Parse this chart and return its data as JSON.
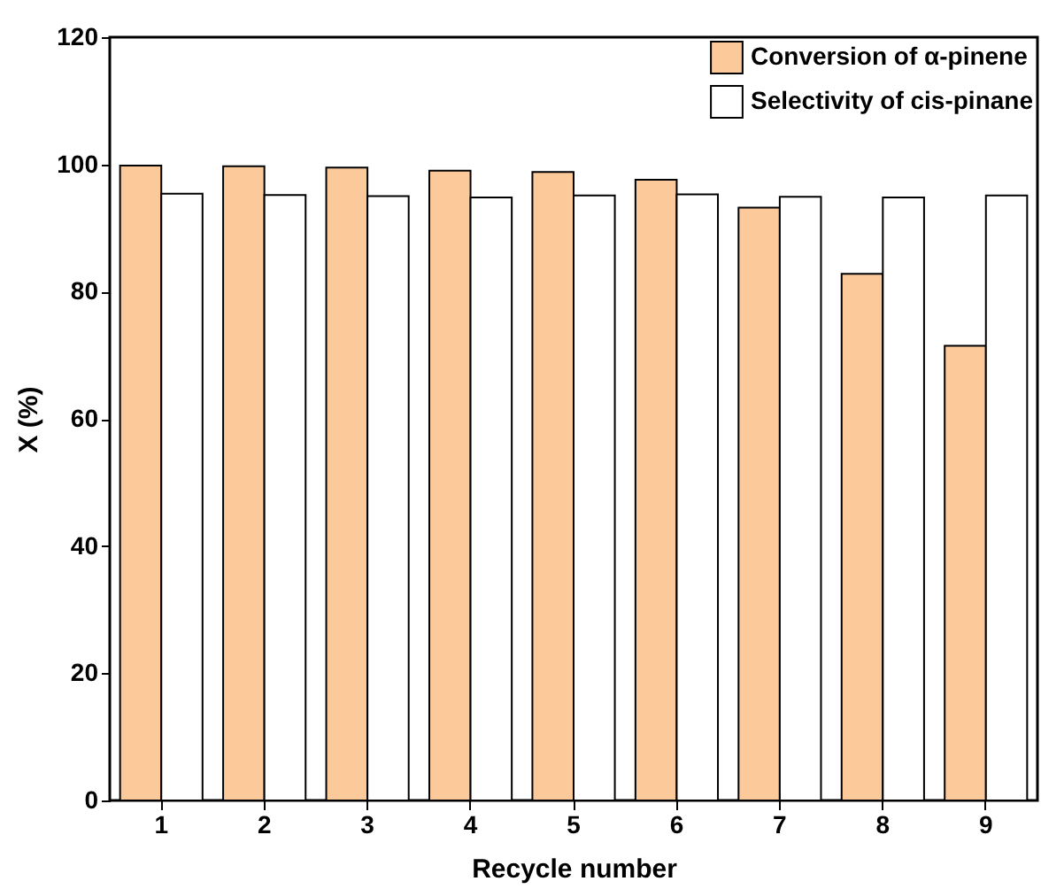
{
  "chart_data": {
    "type": "bar",
    "xlabel": "Recycle number",
    "ylabel": "X (%)",
    "categories": [
      "1",
      "2",
      "3",
      "4",
      "5",
      "6",
      "7",
      "8",
      "9"
    ],
    "series": [
      {
        "name": "Conversion of α-pinene",
        "color": "#fbc99a",
        "values": [
          99.8,
          99.7,
          99.5,
          99.0,
          98.8,
          97.6,
          93.2,
          82.8,
          71.5
        ]
      },
      {
        "name": "Selectivity of cis-pinane",
        "color": "#ffffff",
        "values": [
          95.4,
          95.2,
          95.0,
          94.8,
          95.1,
          95.3,
          94.9,
          94.8,
          95.1
        ]
      }
    ],
    "ylim": [
      0,
      120
    ],
    "yticks": [
      0,
      20,
      40,
      60,
      80,
      100,
      120
    ],
    "legend": "top right",
    "grid": false
  }
}
